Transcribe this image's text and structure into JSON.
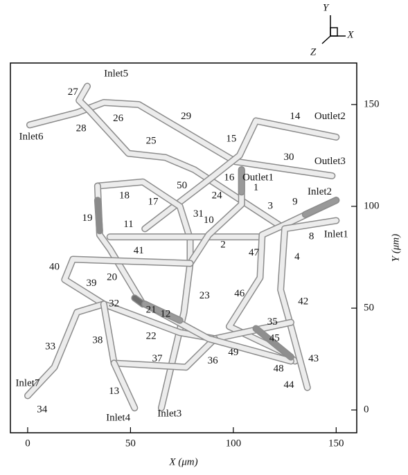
{
  "chart_data": {
    "type": "network",
    "xlabel": "X (μm)",
    "ylabel": "Y (μm)",
    "triad": {
      "y": "Y",
      "x": "X",
      "z": "Z"
    },
    "xlim": [
      -8.4,
      160
    ],
    "ylim": [
      -11.2,
      170.4
    ],
    "xticks": [
      0,
      50,
      100,
      150
    ],
    "yticks": [
      0,
      50,
      100,
      150
    ],
    "tubes": [
      {
        "color": "#ececec",
        "x": [
          1,
          24,
          37,
          54,
          101,
          148
        ],
        "y": [
          140,
          146,
          151,
          150,
          122,
          115
        ]
      },
      {
        "color": "#ececec",
        "x": [
          29,
          25,
          30,
          49,
          67,
          81,
          125
        ],
        "y": [
          159,
          152,
          147,
          126,
          124,
          118,
          89
        ]
      },
      {
        "color": "#ececec",
        "x": [
          150,
          111,
          103,
          88,
          57
        ],
        "y": [
          134,
          142,
          125,
          113,
          89
        ]
      },
      {
        "color": "#ececec",
        "x": [
          34,
          56,
          74,
          79,
          79,
          76,
          65
        ],
        "y": [
          110,
          112,
          100,
          84,
          72,
          48,
          1
        ]
      },
      {
        "color": "#ececec",
        "x": [
          34,
          35,
          40,
          56
        ],
        "y": [
          110,
          86,
          79,
          52
        ]
      },
      {
        "color": "#ececec",
        "x": [
          40,
          114
        ],
        "y": [
          85,
          85
        ]
      },
      {
        "color": "#ececec",
        "x": [
          104,
          104,
          88,
          79
        ],
        "y": [
          118,
          101,
          86,
          72
        ]
      },
      {
        "color": "#ececec",
        "x": [
          150,
          125,
          114,
          113,
          98,
          125,
          130
        ],
        "y": [
          103,
          91,
          86,
          65,
          41,
          28,
          24
        ]
      },
      {
        "color": "#ececec",
        "x": [
          150,
          125,
          123,
          128,
          136
        ],
        "y": [
          93,
          89,
          59,
          41,
          11
        ]
      },
      {
        "color": "#ececec",
        "x": [
          79,
          22,
          18,
          37,
          74,
          91,
          128
        ],
        "y": [
          72,
          74,
          64,
          52,
          38,
          35,
          43
        ]
      },
      {
        "color": "#ececec",
        "x": [
          37,
          24,
          13,
          0
        ],
        "y": [
          52,
          48,
          21,
          7
        ]
      },
      {
        "color": "#ececec",
        "x": [
          37,
          42,
          77,
          91
        ],
        "y": [
          52,
          23,
          21,
          35
        ]
      },
      {
        "color": "#ececec",
        "x": [
          42,
          52
        ],
        "y": [
          23,
          1
        ]
      },
      {
        "color": "#ececec",
        "x": [
          57,
          88,
          128
        ],
        "y": [
          52,
          35,
          24
        ]
      },
      {
        "color": "#8a8a8a",
        "x": [
          34,
          35
        ],
        "y": [
          103,
          88
        ]
      },
      {
        "color": "#6e6e6e",
        "x": [
          52,
          56
        ],
        "y": [
          55,
          52
        ]
      },
      {
        "color": "#999999",
        "x": [
          150,
          135
        ],
        "y": [
          103,
          96
        ]
      },
      {
        "color": "#9a9a9a",
        "x": [
          104,
          104
        ],
        "y": [
          118,
          107
        ]
      },
      {
        "color": "#8f8f8f",
        "x": [
          111,
          128
        ],
        "y": [
          40,
          26
        ]
      },
      {
        "color": "#9a9a9a",
        "x": [
          57,
          74
        ],
        "y": [
          52,
          44
        ]
      }
    ],
    "labels": [
      {
        "text": "Inlet5",
        "x": 43,
        "y": 165
      },
      {
        "text": "27",
        "x": 22,
        "y": 156
      },
      {
        "text": "Inlet6",
        "x": 1.7,
        "y": 134
      },
      {
        "text": "28",
        "x": 26,
        "y": 138
      },
      {
        "text": "26",
        "x": 44,
        "y": 143
      },
      {
        "text": "29",
        "x": 77,
        "y": 144
      },
      {
        "text": "25",
        "x": 60,
        "y": 132
      },
      {
        "text": "15",
        "x": 99,
        "y": 133
      },
      {
        "text": "14",
        "x": 130,
        "y": 144
      },
      {
        "text": "Outlet2",
        "x": 147,
        "y": 144
      },
      {
        "text": "30",
        "x": 127,
        "y": 124
      },
      {
        "text": "Outlet3",
        "x": 147,
        "y": 122
      },
      {
        "text": "16",
        "x": 98,
        "y": 114
      },
      {
        "text": "Outlet1",
        "x": 112,
        "y": 114
      },
      {
        "text": "1",
        "x": 111,
        "y": 109
      },
      {
        "text": "50",
        "x": 75,
        "y": 110
      },
      {
        "text": "18",
        "x": 47,
        "y": 105
      },
      {
        "text": "17",
        "x": 61,
        "y": 102
      },
      {
        "text": "24",
        "x": 92,
        "y": 105
      },
      {
        "text": "3",
        "x": 118,
        "y": 100
      },
      {
        "text": "9",
        "x": 130,
        "y": 102
      },
      {
        "text": "Inlet2",
        "x": 142,
        "y": 107
      },
      {
        "text": "31",
        "x": 83,
        "y": 96
      },
      {
        "text": "10",
        "x": 88,
        "y": 93
      },
      {
        "text": "19",
        "x": 29,
        "y": 94
      },
      {
        "text": "11",
        "x": 49,
        "y": 91
      },
      {
        "text": "8",
        "x": 138,
        "y": 85
      },
      {
        "text": "Inlet1",
        "x": 150,
        "y": 86
      },
      {
        "text": "2",
        "x": 95,
        "y": 81
      },
      {
        "text": "41",
        "x": 54,
        "y": 78
      },
      {
        "text": "47",
        "x": 110,
        "y": 77
      },
      {
        "text": "4",
        "x": 131,
        "y": 75
      },
      {
        "text": "40",
        "x": 13,
        "y": 70
      },
      {
        "text": "20",
        "x": 41,
        "y": 65
      },
      {
        "text": "39",
        "x": 31,
        "y": 62
      },
      {
        "text": "23",
        "x": 86,
        "y": 56
      },
      {
        "text": "46",
        "x": 103,
        "y": 57
      },
      {
        "text": "42",
        "x": 134,
        "y": 53
      },
      {
        "text": "32",
        "x": 42,
        "y": 52
      },
      {
        "text": "21",
        "x": 60,
        "y": 49
      },
      {
        "text": "12",
        "x": 67,
        "y": 47
      },
      {
        "text": "35",
        "x": 119,
        "y": 43
      },
      {
        "text": "22",
        "x": 60,
        "y": 36
      },
      {
        "text": "45",
        "x": 120,
        "y": 35
      },
      {
        "text": "38",
        "x": 34,
        "y": 34
      },
      {
        "text": "49",
        "x": 100,
        "y": 28
      },
      {
        "text": "43",
        "x": 139,
        "y": 25
      },
      {
        "text": "36",
        "x": 90,
        "y": 24
      },
      {
        "text": "37",
        "x": 63,
        "y": 25
      },
      {
        "text": "48",
        "x": 122,
        "y": 20
      },
      {
        "text": "33",
        "x": 11,
        "y": 31
      },
      {
        "text": "13",
        "x": 42,
        "y": 9
      },
      {
        "text": "44",
        "x": 127,
        "y": 12
      },
      {
        "text": "Inlet7",
        "x": 0,
        "y": 13
      },
      {
        "text": "34",
        "x": 7,
        "y": 0
      },
      {
        "text": "Inlet4",
        "x": 44,
        "y": -4
      },
      {
        "text": "Inlet3",
        "x": 69,
        "y": -2
      }
    ]
  }
}
